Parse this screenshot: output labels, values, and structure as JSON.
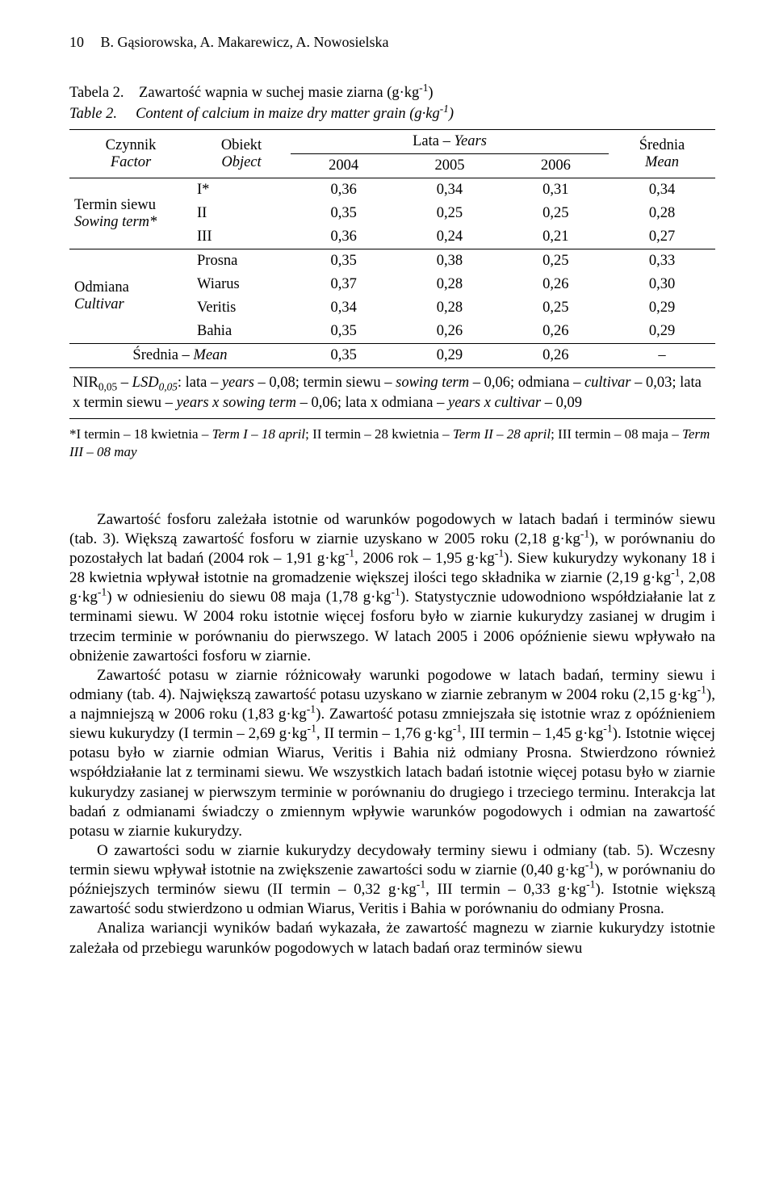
{
  "page_number": "10",
  "running_authors": "B. Gąsiorowska, A. Makarewicz, A. Nowosielska",
  "caption": {
    "l1a": "Tabela 2.",
    "l1b": "Zawartość wapnia w suchej masie ziarna (g·kg",
    "l1c": ")",
    "l2a": "Table 2.",
    "l2b": "Content of calcium in maize dry matter grain (g·kg",
    "l2c": ")",
    "sup": "-1"
  },
  "headers": {
    "czynnik": "Czynnik",
    "factor": "Factor",
    "obiekt": "Obiekt",
    "object": "Object",
    "lata": "Lata – ",
    "years": "Years",
    "y2004": "2004",
    "y2005": "2005",
    "y2006": "2006",
    "srednia": "Średnia",
    "mean": "Mean"
  },
  "factors": {
    "termin": "Termin siewu",
    "sowing": "Sowing term",
    "odmiana": "Odmiana",
    "cultivar": "Cultivar",
    "srednia_mean": "Średnia – "
  },
  "objects": {
    "I": "I*",
    "II": "II",
    "III": "III",
    "Prosna": "Prosna",
    "Wiarus": "Wiarus",
    "Veritis": "Veritis",
    "Bahia": "Bahia"
  },
  "rows": {
    "I": {
      "y04": "0,36",
      "y05": "0,34",
      "y06": "0,31",
      "m": "0,34"
    },
    "II": {
      "y04": "0,35",
      "y05": "0,25",
      "y06": "0,25",
      "m": "0,28"
    },
    "III": {
      "y04": "0,36",
      "y05": "0,24",
      "y06": "0,21",
      "m": "0,27"
    },
    "Prosna": {
      "y04": "0,35",
      "y05": "0,38",
      "y06": "0,25",
      "m": "0,33"
    },
    "Wiarus": {
      "y04": "0,37",
      "y05": "0,28",
      "y06": "0,26",
      "m": "0,30"
    },
    "Veritis": {
      "y04": "0,34",
      "y05": "0,28",
      "y06": "0,25",
      "m": "0,29"
    },
    "Bahia": {
      "y04": "0,35",
      "y05": "0,26",
      "y06": "0,26",
      "m": "0,29"
    },
    "Mean": {
      "y04": "0,35",
      "y05": "0,29",
      "y06": "0,26",
      "m": "–"
    }
  },
  "nir_note": {
    "a": "NIR",
    "sub": "0,05",
    "b": " – ",
    "c": "LSD",
    "d": ": lata – ",
    "e": "years",
    "f": " – 0,08; termin siewu – ",
    "g": "sowing term",
    "h": " – 0,06; odmiana – ",
    "i": "cultivar",
    "j": " – 0,03; lata x termin siewu – ",
    "k": "years x sowing term",
    "l": " – 0,06; lata x odmiana – ",
    "m": "years x cultivar",
    "n": " – 0,09"
  },
  "footnote": {
    "a": "*I termin – 18 kwietnia – ",
    "b": "Term I – 18 april",
    "c": "; II termin – 28 kwietnia – ",
    "d": "Term II – 28 april",
    "e": "; III termin – 08 maja – ",
    "f": "Term III – 08 may"
  },
  "paragraphs": {
    "p1_a": "Zawartość fosforu zależała istotnie od warunków pogodowych w latach badań i terminów siewu (tab. 3). Większą zawartość fosforu w ziarnie uzyskano w 2005 roku (2,18 g·kg",
    "p1_b": "), w porównaniu do pozostałych lat badań (2004 rok – 1,91 g·kg",
    "p1_c": ", 2006 rok – 1,95 g·kg",
    "p1_d": "). Siew kukurydzy wykonany 18 i 28 kwietnia wpływał istotnie na gromadzenie większej ilości tego składnika w ziarnie (2,19 g·kg",
    "p1_e": ", 2,08 g·kg",
    "p1_f": ") w odniesieniu do siewu 08 maja (1,78 g·kg",
    "p1_g": "). Statystycznie udowodniono współdziałanie lat z terminami siewu. W 2004 roku istotnie więcej fosforu było w ziarnie kukurydzy zasianej w drugim i trzecim terminie w porównaniu do pierwszego. W latach 2005 i 2006 opóźnienie siewu wpływało na obniżenie zawartości fosforu w ziarnie.",
    "p2_a": "Zawartość potasu w ziarnie różnicowały warunki pogodowe w latach badań, terminy siewu i odmiany (tab. 4). Największą zawartość potasu uzyskano w ziarnie zebranym w 2004 roku (2,15 g·kg",
    "p2_b": "), a najmniejszą w 2006 roku (1,83 g·kg",
    "p2_c": "). Zawartość potasu zmniejszała się istotnie wraz z opóźnieniem siewu kukurydzy (I termin – 2,69 g·kg",
    "p2_d": ", II termin – 1,76 g·kg",
    "p2_e": ", III termin – 1,45 g·kg",
    "p2_f": "). Istotnie więcej potasu było w ziarnie odmian Wiarus, Veritis i Bahia niż odmiany Prosna. Stwierdzono również współdziałanie lat z terminami siewu. We wszystkich latach badań istotnie więcej potasu było w ziarnie kukurydzy zasianej w pierwszym terminie w porównaniu do drugiego i trzeciego terminu. Interakcja lat badań z odmianami świadczy o zmiennym wpływie warunków pogodowych i odmian na zawartość potasu w ziarnie kukurydzy.",
    "p3_a": "O zawartości sodu w ziarnie kukurydzy decydowały terminy siewu i odmiany (tab. 5). Wczesny termin siewu wpływał istotnie na zwiększenie zawartości sodu w ziarnie (0,40 g·kg",
    "p3_b": "), w porównaniu do późniejszych terminów siewu (II termin – 0,32 g·kg",
    "p3_c": ", III termin – 0,33 g·kg",
    "p3_d": "). Istotnie większą zawartość sodu stwierdzono u odmian Wiarus, Veritis i Bahia w porównaniu do odmiany Prosna.",
    "p4": "Analiza wariancji wyników badań wykazała, że zawartość magnezu w ziarnie kukurydzy istotnie zależała od przebiegu warunków pogodowych w latach badań oraz terminów siewu",
    "sup": "-1"
  }
}
